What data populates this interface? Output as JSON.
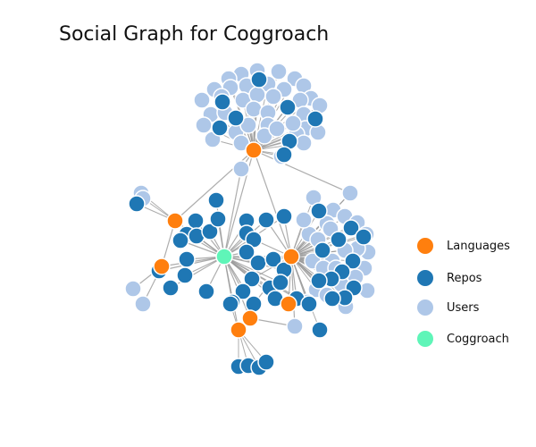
{
  "title": "Social Graph for Coggroach",
  "colors": {
    "language": "#ff7f0e",
    "repo": "#1f77b4",
    "user": "#aec7e8",
    "coggroach": "#5ff5b8",
    "edge": "#999999"
  },
  "legend": [
    {
      "label": "Languages",
      "kind": "language"
    },
    {
      "label": "Repos",
      "kind": "repo"
    },
    {
      "label": "Users",
      "kind": "user"
    },
    {
      "label": "Coggroach",
      "kind": "coggroach"
    }
  ]
}
